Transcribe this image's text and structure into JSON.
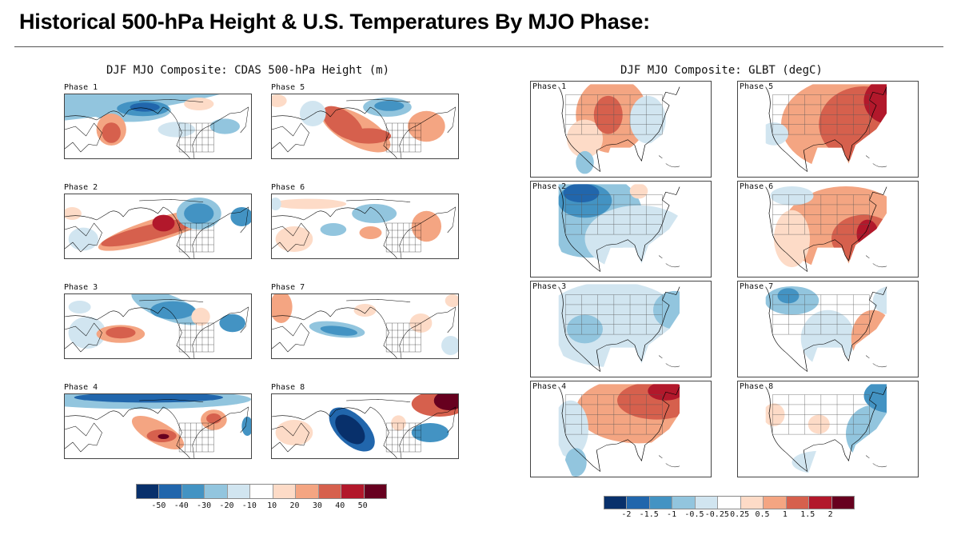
{
  "page": {
    "title": "Historical 500-hPa Height & U.S. Temperatures By MJO Phase:"
  },
  "height_section": {
    "title": "DJF MJO Composite: CDAS 500-hPa Height (m)",
    "panels": [
      {
        "label": "Phase 1",
        "pattern": "deep negative over Aleutians/Alaska, positive over Japan, weak negative eastern US"
      },
      {
        "label": "Phase 2",
        "pattern": "strong positive North Pacific into Gulf of Alaska, negative over central/eastern Canada"
      },
      {
        "label": "Phase 3",
        "pattern": "positive central Pacific, negative Alaska/western Canada, negative off Northeast coast"
      },
      {
        "label": "Phase 4",
        "pattern": "negative across high latitudes, positive central North Pacific, positive eastern Canada/Great Lakes"
      },
      {
        "label": "Phase 5",
        "pattern": "positive Bering Sea to central Pacific, negative Alaska/Yukon, positive eastern US"
      },
      {
        "label": "Phase 6",
        "pattern": "weak positive central Pacific, negative western Canada, positive eastern US"
      },
      {
        "label": "Phase 7",
        "pattern": "negative central North Pacific, weak positive Alaska and eastern US"
      },
      {
        "label": "Phase 8",
        "pattern": "strong negative Gulf of Alaska, positive Greenland/Labrador, negative eastern US coast"
      }
    ],
    "colorbar": {
      "ticks": [
        "-50",
        "-40",
        "-30",
        "-20",
        "-10",
        "10",
        "20",
        "30",
        "40",
        "50"
      ],
      "colors": [
        "#08306b",
        "#2166ac",
        "#4393c3",
        "#92c5de",
        "#d1e5f0",
        "#ffffff",
        "#fddbc7",
        "#f4a582",
        "#d6604d",
        "#b2182b",
        "#67001f"
      ]
    }
  },
  "temp_section": {
    "title": "DJF MJO Composite: GLBT (degC)",
    "panels": [
      {
        "label": "Phase 1",
        "pattern": "warm northern Plains/Midwest, cool East Coast and Mexico"
      },
      {
        "label": "Phase 2",
        "pattern": "cold across most of US, coldest northern Rockies/Plains"
      },
      {
        "label": "Phase 3",
        "pattern": "weak cool across most of US"
      },
      {
        "label": "Phase 4",
        "pattern": "very warm Great Lakes/Northeast, cool West"
      },
      {
        "label": "Phase 5",
        "pattern": "very warm eastern half of US, strongest Northeast"
      },
      {
        "label": "Phase 6",
        "pattern": "warm central and eastern US, strongest Southeast"
      },
      {
        "label": "Phase 7",
        "pattern": "cool northwest and south-central, warm Southeast"
      },
      {
        "label": "Phase 8",
        "pattern": "cold Northeast and East, weak warm central Plains"
      }
    ],
    "colorbar": {
      "ticks": [
        "-2",
        "-1.5",
        "-1",
        "-0.5",
        "-0.25",
        "0.25",
        "0.5",
        "1",
        "1.5",
        "2"
      ],
      "colors": [
        "#08306b",
        "#2166ac",
        "#4393c3",
        "#92c5de",
        "#d1e5f0",
        "#ffffff",
        "#fddbc7",
        "#f4a582",
        "#d6604d",
        "#b2182b",
        "#67001f"
      ]
    }
  }
}
